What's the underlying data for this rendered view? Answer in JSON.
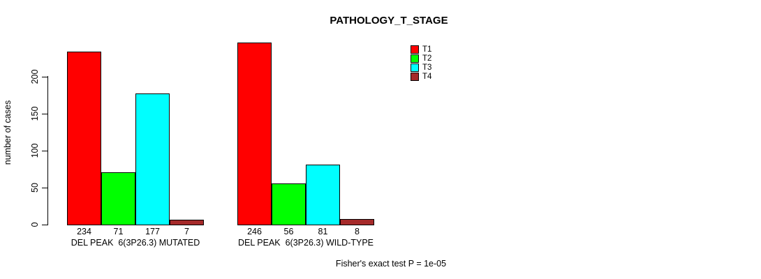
{
  "chart_data": {
    "type": "bar",
    "title": "PATHOLOGY_T_STAGE",
    "ylabel": "number of cases",
    "xlabel": "",
    "ylim": [
      0,
      200
    ],
    "yticks": [
      0,
      50,
      100,
      150,
      200
    ],
    "grid": false,
    "legend_position": "top-right",
    "categories": [
      "DEL PEAK  6(3P26.3) MUTATED",
      "DEL PEAK  6(3P26.3) WILD-TYPE"
    ],
    "series": [
      {
        "name": "T1",
        "color": "#FF0000",
        "values": [
          234,
          246
        ]
      },
      {
        "name": "T2",
        "color": "#00FF00",
        "values": [
          71,
          56
        ]
      },
      {
        "name": "T3",
        "color": "#00FFFF",
        "values": [
          177,
          81
        ]
      },
      {
        "name": "T4",
        "color": "#A52A2A",
        "values": [
          7,
          8
        ]
      }
    ],
    "groups": [
      {
        "label": "DEL PEAK  6(3P26.3) MUTATED",
        "values": [
          234,
          71,
          177,
          7
        ]
      },
      {
        "label": "DEL PEAK  6(3P26.3) WILD-TYPE",
        "values": [
          246,
          56,
          81,
          8
        ]
      }
    ],
    "annotation": "Fisher's exact test P = 1e-05",
    "axis_color": "#000000",
    "background_color": "#FFFFFF"
  }
}
